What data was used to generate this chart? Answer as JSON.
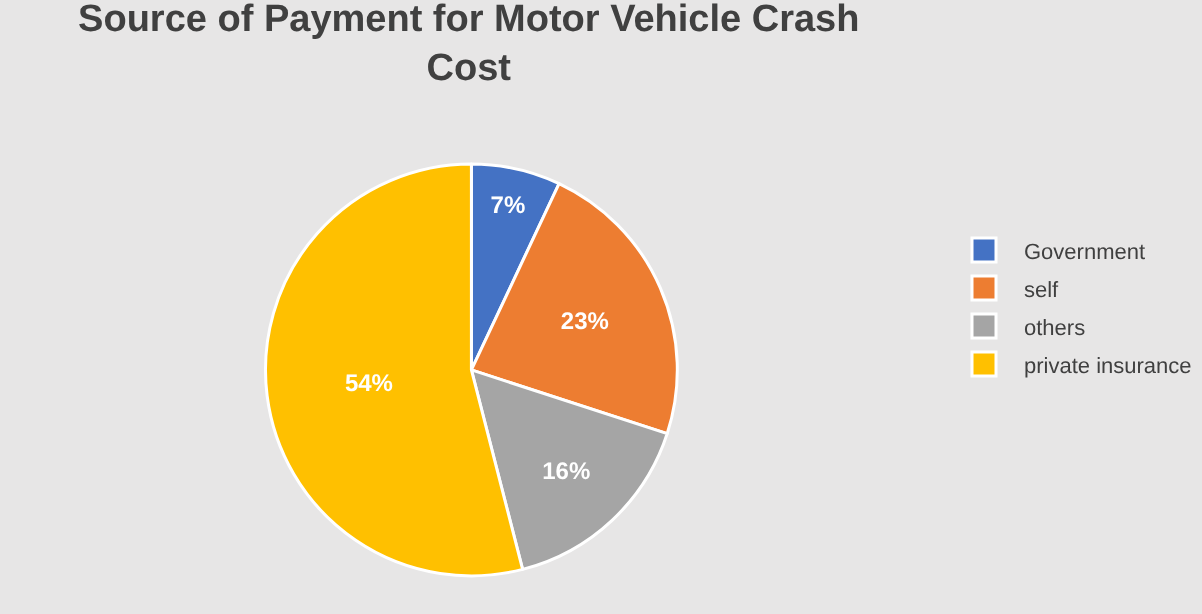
{
  "chart_data": {
    "type": "pie",
    "title": "Source of Payment for Motor Vehicle Crash Cost",
    "categories": [
      "Government",
      "self",
      "others",
      "private insurance"
    ],
    "values": [
      7,
      23,
      16,
      54
    ],
    "colors": [
      "#4472c4",
      "#ed7d31",
      "#a5a5a5",
      "#ffc000"
    ],
    "value_labels": [
      "7%",
      "23%",
      "16%",
      "54%"
    ],
    "legend": "right"
  }
}
